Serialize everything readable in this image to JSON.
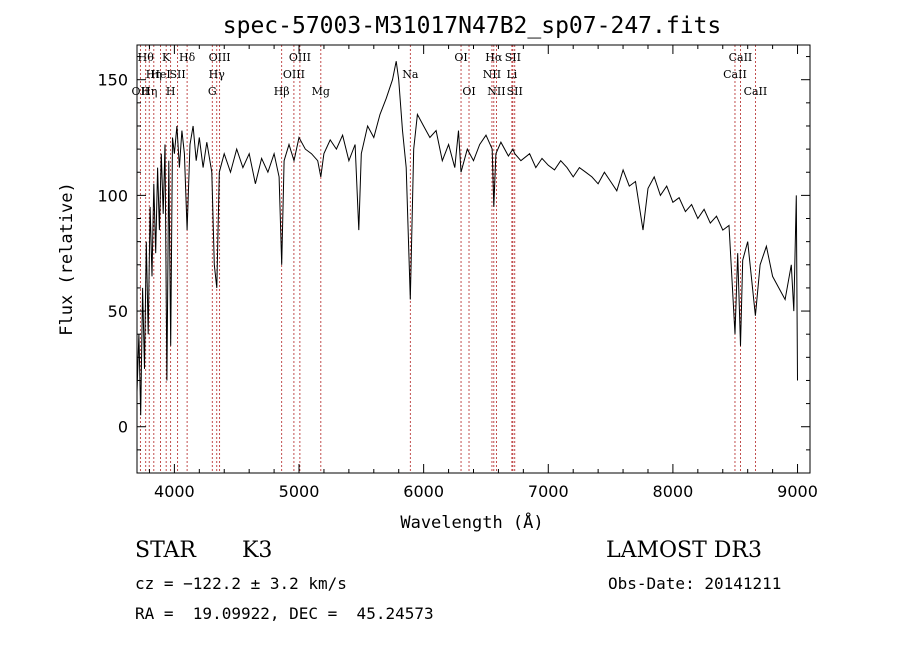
{
  "chart_data": {
    "type": "line",
    "title": "spec-57003-M31017N47B2_sp07-247.fits",
    "xlabel": "Wavelength (Å)",
    "ylabel": "Flux (relative)",
    "xlim": [
      3700,
      9100
    ],
    "ylim": [
      -20,
      165
    ],
    "xticks": [
      4000,
      5000,
      6000,
      7000,
      8000,
      9000
    ],
    "yticks": [
      0,
      50,
      100,
      150
    ],
    "grid": false,
    "series": [
      {
        "color": "#000000",
        "points": [
          [
            3700,
            15
          ],
          [
            3715,
            40
          ],
          [
            3730,
            5
          ],
          [
            3745,
            60
          ],
          [
            3760,
            25
          ],
          [
            3775,
            80
          ],
          [
            3790,
            40
          ],
          [
            3805,
            95
          ],
          [
            3820,
            65
          ],
          [
            3835,
            105
          ],
          [
            3850,
            75
          ],
          [
            3865,
            112
          ],
          [
            3880,
            85
          ],
          [
            3895,
            118
          ],
          [
            3910,
            92
          ],
          [
            3925,
            122
          ],
          [
            3940,
            20
          ],
          [
            3955,
            115
          ],
          [
            3970,
            35
          ],
          [
            3985,
            125
          ],
          [
            4000,
            118
          ],
          [
            4020,
            130
          ],
          [
            4040,
            112
          ],
          [
            4060,
            128
          ],
          [
            4080,
            118
          ],
          [
            4102,
            85
          ],
          [
            4125,
            122
          ],
          [
            4150,
            130
          ],
          [
            4175,
            115
          ],
          [
            4200,
            125
          ],
          [
            4230,
            112
          ],
          [
            4260,
            123
          ],
          [
            4300,
            110
          ],
          [
            4320,
            70
          ],
          [
            4340,
            60
          ],
          [
            4360,
            110
          ],
          [
            4400,
            118
          ],
          [
            4450,
            110
          ],
          [
            4500,
            120
          ],
          [
            4550,
            112
          ],
          [
            4600,
            118
          ],
          [
            4650,
            105
          ],
          [
            4700,
            116
          ],
          [
            4750,
            110
          ],
          [
            4800,
            118
          ],
          [
            4840,
            108
          ],
          [
            4861,
            70
          ],
          [
            4880,
            115
          ],
          [
            4920,
            122
          ],
          [
            4960,
            115
          ],
          [
            5000,
            125
          ],
          [
            5050,
            120
          ],
          [
            5100,
            118
          ],
          [
            5150,
            115
          ],
          [
            5175,
            108
          ],
          [
            5200,
            118
          ],
          [
            5250,
            124
          ],
          [
            5300,
            120
          ],
          [
            5350,
            126
          ],
          [
            5400,
            115
          ],
          [
            5450,
            122
          ],
          [
            5480,
            85
          ],
          [
            5500,
            118
          ],
          [
            5550,
            130
          ],
          [
            5600,
            125
          ],
          [
            5650,
            135
          ],
          [
            5700,
            142
          ],
          [
            5750,
            150
          ],
          [
            5780,
            158
          ],
          [
            5800,
            150
          ],
          [
            5830,
            128
          ],
          [
            5860,
            112
          ],
          [
            5893,
            55
          ],
          [
            5920,
            120
          ],
          [
            5950,
            135
          ],
          [
            6000,
            130
          ],
          [
            6050,
            125
          ],
          [
            6100,
            128
          ],
          [
            6150,
            115
          ],
          [
            6200,
            122
          ],
          [
            6250,
            112
          ],
          [
            6280,
            128
          ],
          [
            6300,
            110
          ],
          [
            6350,
            120
          ],
          [
            6400,
            115
          ],
          [
            6450,
            122
          ],
          [
            6500,
            126
          ],
          [
            6550,
            120
          ],
          [
            6563,
            95
          ],
          [
            6580,
            118
          ],
          [
            6620,
            123
          ],
          [
            6680,
            117
          ],
          [
            6716,
            120
          ],
          [
            6731,
            118
          ],
          [
            6780,
            115
          ],
          [
            6850,
            118
          ],
          [
            6900,
            112
          ],
          [
            6950,
            116
          ],
          [
            7000,
            113
          ],
          [
            7050,
            111
          ],
          [
            7100,
            115
          ],
          [
            7150,
            112
          ],
          [
            7200,
            108
          ],
          [
            7250,
            112
          ],
          [
            7300,
            110
          ],
          [
            7350,
            108
          ],
          [
            7400,
            105
          ],
          [
            7450,
            110
          ],
          [
            7500,
            106
          ],
          [
            7550,
            102
          ],
          [
            7600,
            111
          ],
          [
            7650,
            104
          ],
          [
            7700,
            106
          ],
          [
            7760,
            85
          ],
          [
            7800,
            103
          ],
          [
            7850,
            108
          ],
          [
            7900,
            100
          ],
          [
            7950,
            104
          ],
          [
            8000,
            97
          ],
          [
            8050,
            99
          ],
          [
            8100,
            93
          ],
          [
            8150,
            96
          ],
          [
            8200,
            90
          ],
          [
            8250,
            94
          ],
          [
            8300,
            88
          ],
          [
            8350,
            91
          ],
          [
            8400,
            85
          ],
          [
            8450,
            87
          ],
          [
            8498,
            40
          ],
          [
            8520,
            75
          ],
          [
            8542,
            35
          ],
          [
            8560,
            72
          ],
          [
            8600,
            80
          ],
          [
            8662,
            48
          ],
          [
            8700,
            70
          ],
          [
            8750,
            78
          ],
          [
            8800,
            65
          ],
          [
            8850,
            60
          ],
          [
            8900,
            55
          ],
          [
            8950,
            70
          ],
          [
            8970,
            50
          ],
          [
            8990,
            100
          ],
          [
            9000,
            20
          ]
        ]
      }
    ],
    "line_markers": [
      {
        "wl": 3727,
        "label": "OII",
        "row": 3
      },
      {
        "wl": 3770,
        "label": "Hθ",
        "row": 1
      },
      {
        "wl": 3798,
        "label": "Hη",
        "row": 3
      },
      {
        "wl": 3835,
        "label": "Hη",
        "row": 2
      },
      {
        "wl": 3889,
        "label": "HeI",
        "row": 2
      },
      {
        "wl": 3934,
        "label": "K",
        "row": 1
      },
      {
        "wl": 3970,
        "label": "H",
        "row": 3
      },
      {
        "wl": 4026,
        "label": "SII",
        "row": 2
      },
      {
        "wl": 4102,
        "label": "Hδ",
        "row": 1
      },
      {
        "wl": 4304,
        "label": "G",
        "row": 3
      },
      {
        "wl": 4340,
        "label": "Hγ",
        "row": 2
      },
      {
        "wl": 4363,
        "label": "OIII",
        "row": 1
      },
      {
        "wl": 4861,
        "label": "Hβ",
        "row": 3
      },
      {
        "wl": 4959,
        "label": "OIII",
        "row": 2
      },
      {
        "wl": 5007,
        "label": "OIII",
        "row": 1
      },
      {
        "wl": 5175,
        "label": "Mg",
        "row": 3
      },
      {
        "wl": 5893,
        "label": "Na",
        "row": 2
      },
      {
        "wl": 6300,
        "label": "OI",
        "row": 1
      },
      {
        "wl": 6364,
        "label": "OI",
        "row": 3
      },
      {
        "wl": 6548,
        "label": "NII",
        "row": 2
      },
      {
        "wl": 6563,
        "label": "Hα",
        "row": 1
      },
      {
        "wl": 6584,
        "label": "NII",
        "row": 3
      },
      {
        "wl": 6708,
        "label": "Li",
        "row": 2
      },
      {
        "wl": 6716,
        "label": "SII",
        "row": 1
      },
      {
        "wl": 6731,
        "label": "SII",
        "row": 3
      },
      {
        "wl": 8498,
        "label": "CaII",
        "row": 2
      },
      {
        "wl": 8542,
        "label": "CaII",
        "row": 1
      },
      {
        "wl": 8662,
        "label": "CaII",
        "row": 3
      }
    ]
  },
  "info": {
    "object_type": "STAR",
    "subclass": "K3",
    "survey": "LAMOST DR3",
    "cz": "cz = −122.2 ± 3.2 km/s",
    "obs_date": "Obs-Date: 20141211",
    "coords": "RA =  19.09922, DEC =  45.24573"
  }
}
